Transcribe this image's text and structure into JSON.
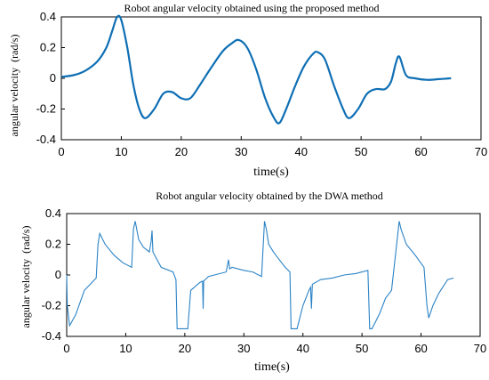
{
  "chart_data": [
    {
      "type": "line",
      "title": "Robot angular velocity obtained using the proposed method",
      "xlabel": "time(s)",
      "ylabel": "angular velocity  (rad/s)",
      "xlim": [
        0,
        70
      ],
      "ylim": [
        -0.4,
        0.4
      ],
      "xticks": [
        "0",
        "10",
        "20",
        "30",
        "40",
        "50",
        "60",
        "70"
      ],
      "yticks": [
        "0.4",
        "0.2",
        "0",
        "-0.2",
        "-0.4"
      ],
      "series": [
        {
          "color": "#0f6fb4",
          "x": [
            0,
            2,
            4,
            6,
            7.5,
            8.5,
            9.3,
            10,
            11,
            12,
            13,
            14,
            15.5,
            17,
            18.5,
            20,
            21.5,
            23,
            25,
            27,
            28.5,
            29.6,
            31,
            32.5,
            34,
            35.5,
            36.4,
            37.5,
            39,
            40.5,
            42,
            42.8,
            44,
            45.5,
            47,
            48,
            49.5,
            51,
            52.5,
            54,
            55,
            55.8,
            56.4,
            57.5,
            59,
            61,
            63,
            65
          ],
          "y": [
            0.01,
            0.02,
            0.05,
            0.11,
            0.2,
            0.31,
            0.4,
            0.38,
            0.2,
            -0.04,
            -0.2,
            -0.26,
            -0.2,
            -0.1,
            -0.09,
            -0.13,
            -0.13,
            -0.05,
            0.07,
            0.18,
            0.23,
            0.25,
            0.2,
            0.06,
            -0.13,
            -0.26,
            -0.29,
            -0.2,
            -0.05,
            0.08,
            0.16,
            0.17,
            0.12,
            -0.05,
            -0.2,
            -0.26,
            -0.2,
            -0.1,
            -0.07,
            -0.07,
            -0.02,
            0.1,
            0.14,
            0.02,
            0.0,
            -0.01,
            -0.005,
            0.0
          ]
        }
      ]
    },
    {
      "type": "line",
      "title": "Robot angular velocity obtained by the DWA method",
      "xlabel": "time(s)",
      "ylabel": "angular velocity  (rad/s)",
      "xlim": [
        0,
        70
      ],
      "ylim": [
        -0.4,
        0.4
      ],
      "xticks": [
        "0",
        "10",
        "20",
        "30",
        "40",
        "50",
        "60",
        "70"
      ],
      "yticks": [
        "0.4",
        "0.2",
        "0",
        "-0.2",
        "-0.4"
      ],
      "series": [
        {
          "color": "#2b83c6",
          "x": [
            0,
            0.1,
            0.5,
            1.5,
            3,
            5,
            5.3,
            5.6,
            6.5,
            8,
            9.5,
            11,
            11.3,
            11.6,
            12.2,
            13,
            14,
            14.3,
            14.45,
            14.6,
            16,
            18,
            18.5,
            18.7,
            20,
            20.5,
            21,
            22.5,
            23,
            23.1,
            23.2,
            24,
            25,
            27,
            27.4,
            27.6,
            28,
            30,
            31.5,
            32.5,
            33,
            33.5,
            33.8,
            34.2,
            35,
            36,
            37,
            37.8,
            38,
            39,
            40,
            41,
            41.3,
            41.45,
            41.6,
            43,
            45,
            47,
            49,
            51,
            51.3,
            51.7,
            53,
            54,
            55,
            56.3,
            56.6,
            57.5,
            59,
            60.5,
            61,
            61.3,
            62,
            63,
            64,
            64.5,
            65.5
          ],
          "y": [
            0.0,
            -0.2,
            -0.33,
            -0.26,
            -0.1,
            -0.02,
            0.2,
            0.27,
            0.2,
            0.13,
            0.08,
            0.05,
            0.3,
            0.35,
            0.23,
            0.18,
            0.15,
            0.22,
            0.29,
            0.15,
            0.05,
            0.02,
            -0.03,
            -0.35,
            -0.35,
            -0.35,
            -0.1,
            -0.05,
            -0.04,
            -0.22,
            -0.04,
            -0.01,
            0.0,
            0.02,
            0.1,
            0.04,
            0.05,
            0.03,
            0.02,
            0.0,
            -0.01,
            0.35,
            0.3,
            0.2,
            0.15,
            0.1,
            0.05,
            0.02,
            -0.35,
            -0.35,
            -0.2,
            -0.1,
            -0.08,
            -0.22,
            -0.06,
            -0.03,
            -0.02,
            0.0,
            0.01,
            0.03,
            -0.35,
            -0.35,
            -0.25,
            -0.15,
            -0.1,
            0.35,
            0.3,
            0.2,
            0.13,
            0.05,
            -0.2,
            -0.28,
            -0.2,
            -0.12,
            -0.06,
            -0.03,
            -0.02
          ]
        }
      ]
    }
  ]
}
